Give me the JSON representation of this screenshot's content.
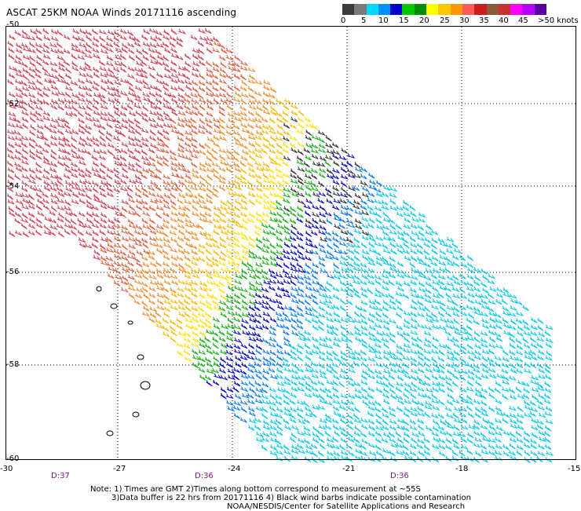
{
  "title": "ASCAT 25KM NOAA Winds 20171116 ascending",
  "colorbar": {
    "swatches": [
      "#3c3c3c",
      "#7a7a7a",
      "#00d8ff",
      "#0090ff",
      "#0000cc",
      "#00c800",
      "#008c00",
      "#ffff00",
      "#ffc800",
      "#ff9600",
      "#ff5a5a",
      "#c81e1e",
      "#8c5a3c",
      "#c83232",
      "#ff00ff",
      "#b400ff",
      "#5a00a0"
    ],
    "labels": [
      "0",
      "5",
      "10",
      "15",
      "20",
      "25",
      "30",
      "35",
      "40",
      "45",
      ">50 knots"
    ]
  },
  "map": {
    "lon_ticks": [
      "-30",
      "-27",
      "-24",
      "-21",
      "-18",
      "-15"
    ],
    "lat_ticks": [
      "-50",
      "-52",
      "-54",
      "-56",
      "-58",
      "-60"
    ],
    "time_labels": [
      "D:37",
      "D:36",
      "D:36"
    ]
  },
  "notes": [
    "Note: 1) Times are GMT 2)Times along bottom correspond to measurement at ~55S",
    "3)Data buffer is 22 hrs from 20171116 4) Black wind barbs indicate possible contamination",
    "NOAA/NESDIS/Center for Satellite Applications and Research"
  ]
}
